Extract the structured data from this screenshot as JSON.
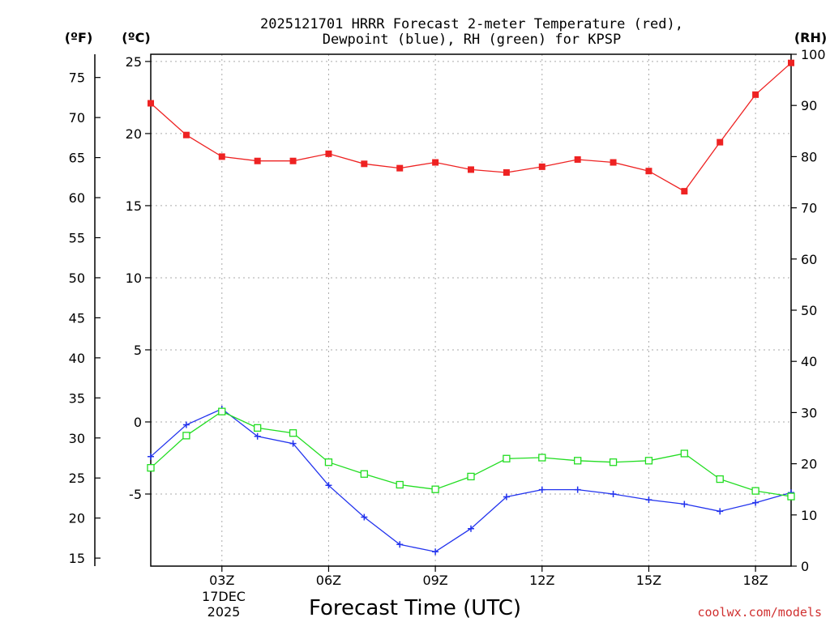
{
  "chart_data": {
    "type": "line",
    "title_line1": "2025121701 HRRR Forecast 2-meter Temperature (red),",
    "title_line2": "Dewpoint (blue), RH (green) for KPSP",
    "xlabel": "Forecast Time (UTC)",
    "date_line1": "17DEC",
    "date_line2": "2025",
    "credit": "coolwx.com/models",
    "units": {
      "fahrenheit": "(ºF)",
      "celsius": "(ºC)",
      "rh": "(RH)"
    },
    "x": [
      1,
      2,
      3,
      4,
      5,
      6,
      7,
      8,
      9,
      10,
      11,
      12,
      13,
      14,
      15,
      16,
      17,
      18,
      19
    ],
    "xlim": [
      1,
      19
    ],
    "x_ticks": [
      {
        "x": 3,
        "label": "03Z"
      },
      {
        "x": 6,
        "label": "06Z"
      },
      {
        "x": 9,
        "label": "09Z"
      },
      {
        "x": 12,
        "label": "12Z"
      },
      {
        "x": 15,
        "label": "15Z"
      },
      {
        "x": 18,
        "label": "18Z"
      }
    ],
    "celsius_axis": {
      "range": [
        -10,
        25.5
      ],
      "ticks": [
        25,
        20,
        15,
        10,
        5,
        0,
        -5
      ]
    },
    "fahrenheit_axis": {
      "range": [
        14,
        77.9
      ],
      "ticks": [
        75,
        70,
        65,
        60,
        55,
        50,
        45,
        40,
        35,
        30,
        25,
        20,
        15
      ]
    },
    "rh_axis": {
      "range": [
        0,
        100
      ],
      "ticks": [
        100,
        90,
        80,
        70,
        60,
        50,
        40,
        30,
        20,
        10,
        0
      ]
    },
    "series": [
      {
        "name": "Temperature",
        "axis": "celsius",
        "color": "#ee2222",
        "marker": "filled-square",
        "values": [
          22.1,
          19.9,
          18.4,
          18.1,
          18.1,
          18.6,
          17.9,
          17.6,
          18.0,
          17.5,
          17.3,
          17.7,
          18.2,
          18.0,
          17.4,
          16.0,
          19.4,
          22.7,
          24.9
        ]
      },
      {
        "name": "Dewpoint",
        "axis": "celsius",
        "color": "#2233ee",
        "marker": "plus",
        "values": [
          -2.4,
          -0.2,
          0.9,
          -1.0,
          -1.5,
          -4.4,
          -6.6,
          -8.5,
          -9.0,
          -7.4,
          -5.2,
          -4.7,
          -4.7,
          -5.0,
          -5.4,
          -5.7,
          -6.2,
          -5.6,
          -4.9
        ]
      },
      {
        "name": "Relative Humidity",
        "axis": "rh",
        "color": "#22dd22",
        "marker": "open-square",
        "values": [
          19.2,
          25.5,
          30.2,
          27.0,
          26.0,
          20.3,
          18.0,
          15.9,
          15.0,
          17.5,
          21.0,
          21.2,
          20.6,
          20.3,
          20.6,
          22.0,
          17.0,
          14.7,
          13.6
        ]
      }
    ]
  }
}
